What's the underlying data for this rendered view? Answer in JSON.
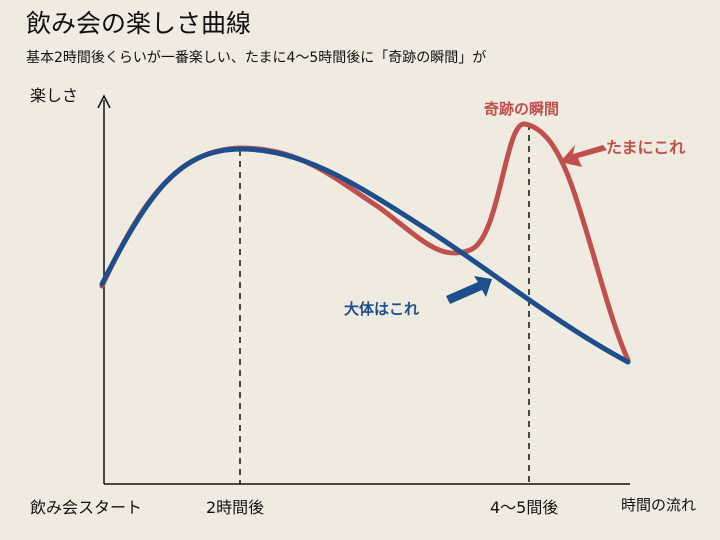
{
  "header": {
    "title": "飲み会の楽しさ曲線",
    "subtitle": "基本2時間後くらいが一番楽しい、たまに4〜5時間後に「奇跡の瞬間」が"
  },
  "axes": {
    "y_label": "楽しさ",
    "x_label": "時間の流れ",
    "ticks": [
      "飲み会スタート",
      "2時間後",
      "4〜5間後"
    ]
  },
  "annotations": {
    "peak": "奇跡の瞬間",
    "red_curve": "たまにこれ",
    "blue_curve": "大体はこれ"
  },
  "colors": {
    "blue": "#1f4e8c",
    "red": "#c0504d",
    "background": "#efebe1"
  }
}
